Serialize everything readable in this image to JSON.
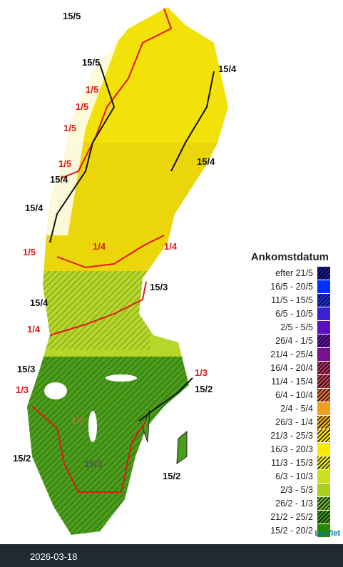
{
  "map_labels": [
    "15/5",
    "15/5",
    "15/4",
    "1/5",
    "1/5",
    "1/5",
    "15/4",
    "1/5",
    "15/4",
    "15/4",
    "1/5",
    "1/4",
    "1/4",
    "15/3",
    "15/4",
    "1/4",
    "15/3",
    "1/3",
    "1/3",
    "15/2",
    "1/3",
    "15/3",
    "15/2",
    "15/2"
  ],
  "legend": {
    "title": "Ankomstdatum",
    "items": [
      {
        "label": "efter 21/5",
        "color": "#1a1aa0",
        "hatched": true
      },
      {
        "label": "16/5 - 20/5",
        "color": "#0030ff",
        "hatched": false
      },
      {
        "label": "11/5 - 15/5",
        "color": "#2030e0",
        "hatched": true
      },
      {
        "label": "6/5 - 10/5",
        "color": "#3a20d0",
        "hatched": false
      },
      {
        "label": "2/5 - 5/5",
        "color": "#5a10c0",
        "hatched": false
      },
      {
        "label": "26/4 - 1/5",
        "color": "#6a10b0",
        "hatched": true
      },
      {
        "label": "21/4 - 25/4",
        "color": "#7a1090",
        "hatched": false
      },
      {
        "label": "16/4 - 20/4",
        "color": "#b03060",
        "hatched": true
      },
      {
        "label": "11/4 - 15/4",
        "color": "#c04050",
        "hatched": true
      },
      {
        "label": "6/4 - 10/4",
        "color": "#e07030",
        "hatched": true
      },
      {
        "label": "2/4 - 5/4",
        "color": "#f0a020",
        "hatched": false
      },
      {
        "label": "26/3 - 1/4",
        "color": "#f0b020",
        "hatched": true
      },
      {
        "label": "21/3 - 25/3",
        "color": "#f8e000",
        "hatched": true
      },
      {
        "label": "16/3 - 20/3",
        "color": "#f8ea00",
        "hatched": false
      },
      {
        "label": "11/3 - 15/3",
        "color": "#e8ea10",
        "hatched": true
      },
      {
        "label": "6/3 - 10/3",
        "color": "#c8e020",
        "hatched": false
      },
      {
        "label": "2/3 - 5/3",
        "color": "#a8d020",
        "hatched": false
      },
      {
        "label": "26/2 - 1/3",
        "color": "#6db52a",
        "hatched": true
      },
      {
        "label": "21/2 - 25/2",
        "color": "#3a9a10",
        "hatched": true
      },
      {
        "label": "15/2 - 20/2",
        "color": "#228b00",
        "hatched": false
      }
    ]
  },
  "attribution": "Leaflet",
  "footer": {
    "date": "2026-03-18"
  }
}
